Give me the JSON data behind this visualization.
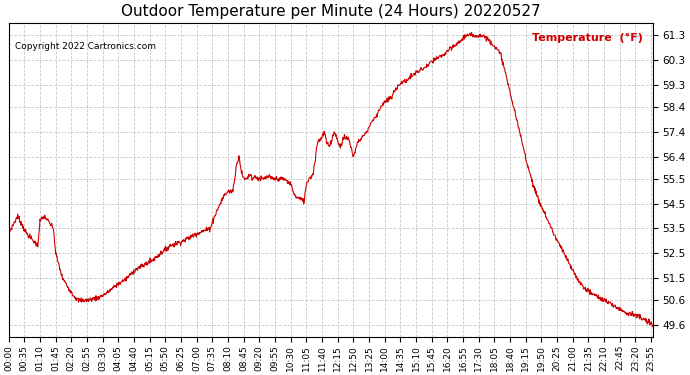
{
  "title": "Outdoor Temperature per Minute (24 Hours) 20220527",
  "copyright_text": "Copyright 2022 Cartronics.com",
  "legend_label": "Temperature  (°F)",
  "line_color": "#cc0000",
  "legend_color": "#cc0000",
  "background_color": "#ffffff",
  "grid_color": "#bbbbbb",
  "yticks": [
    49.6,
    50.6,
    51.5,
    52.5,
    53.5,
    54.5,
    55.5,
    56.4,
    57.4,
    58.4,
    59.3,
    60.3,
    61.3
  ],
  "ylim": [
    49.1,
    61.8
  ],
  "xtick_labels": [
    "00:00",
    "00:35",
    "01:10",
    "01:45",
    "02:20",
    "02:55",
    "03:30",
    "04:05",
    "04:40",
    "05:15",
    "05:50",
    "06:25",
    "07:00",
    "07:35",
    "08:10",
    "08:45",
    "09:20",
    "09:55",
    "10:30",
    "11:05",
    "11:40",
    "12:15",
    "12:50",
    "13:25",
    "14:00",
    "14:35",
    "15:10",
    "15:45",
    "16:20",
    "16:55",
    "17:30",
    "18:05",
    "18:40",
    "19:15",
    "19:50",
    "20:25",
    "21:00",
    "21:35",
    "22:10",
    "22:45",
    "23:20",
    "23:55"
  ],
  "num_points": 1440
}
